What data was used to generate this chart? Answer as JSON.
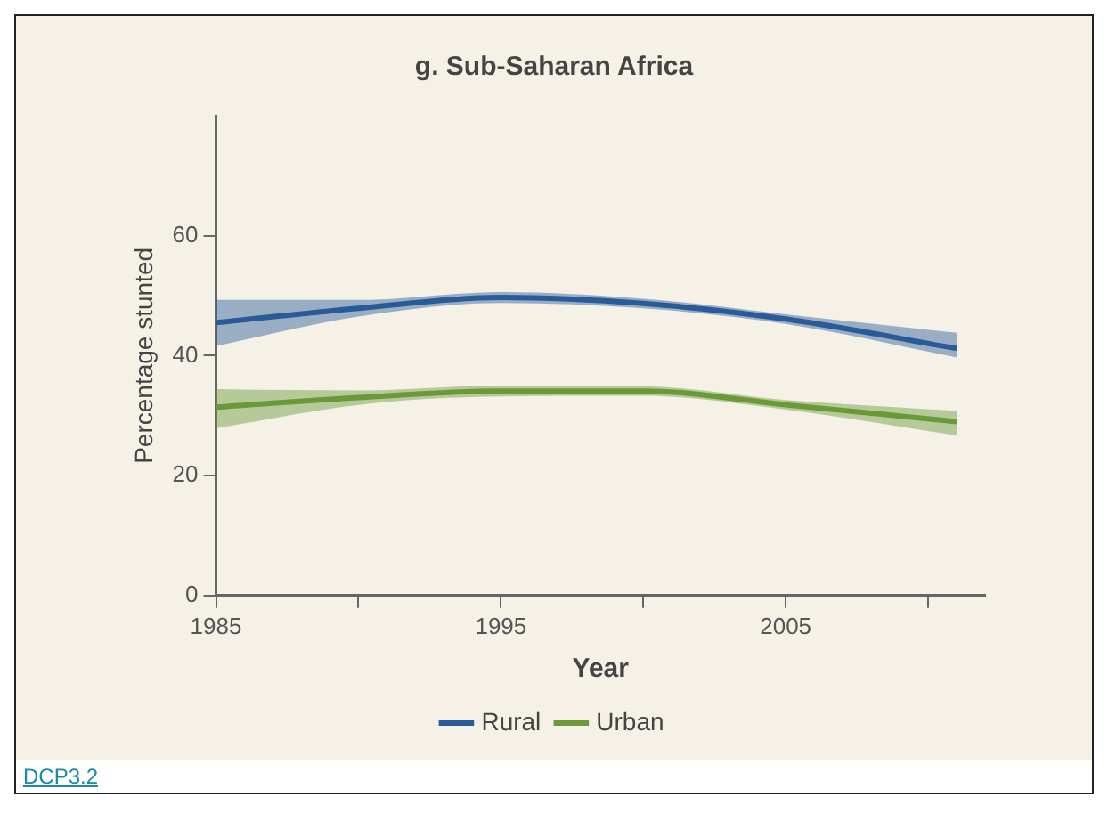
{
  "chart_data": {
    "type": "line",
    "title": "g. Sub-Saharan Africa",
    "xlabel": "Year",
    "ylabel": "Percentage stunted",
    "xlim": [
      1985,
      2012
    ],
    "xticks": [
      1985,
      {
        "value": 1990,
        "label": null
      },
      {
        "value": 1995,
        "label": "1995"
      },
      {
        "value": 2000,
        "label": null
      },
      {
        "value": 2005,
        "label": "2005"
      },
      {
        "value": 2010,
        "label": null
      }
    ],
    "ylim": [
      0,
      80
    ],
    "yticks": [
      0,
      20,
      40,
      60
    ],
    "x": [
      1985,
      1990,
      1995,
      2000,
      2005,
      2011
    ],
    "series": [
      {
        "name": "Rural",
        "color": "#2a5c9a",
        "values": [
          45.5,
          47.9,
          49.7,
          48.7,
          46.1,
          41.2
        ],
        "lower": [
          41.6,
          46.5,
          48.8,
          47.9,
          45.3,
          39.7
        ],
        "upper": [
          49.3,
          49.3,
          50.6,
          49.5,
          46.9,
          43.8
        ]
      },
      {
        "name": "Urban",
        "color": "#6a9a3a",
        "values": [
          31.4,
          33.0,
          34.1,
          34.1,
          31.8,
          29.0
        ],
        "lower": [
          27.9,
          31.8,
          33.2,
          33.3,
          31.0,
          26.7
        ],
        "upper": [
          34.4,
          34.2,
          35.0,
          34.9,
          32.6,
          30.8
        ]
      }
    ],
    "marker": "none",
    "line_style": "solid",
    "grid": false,
    "legend": "bottom",
    "annotations": [
      "DCP3.2"
    ]
  }
}
